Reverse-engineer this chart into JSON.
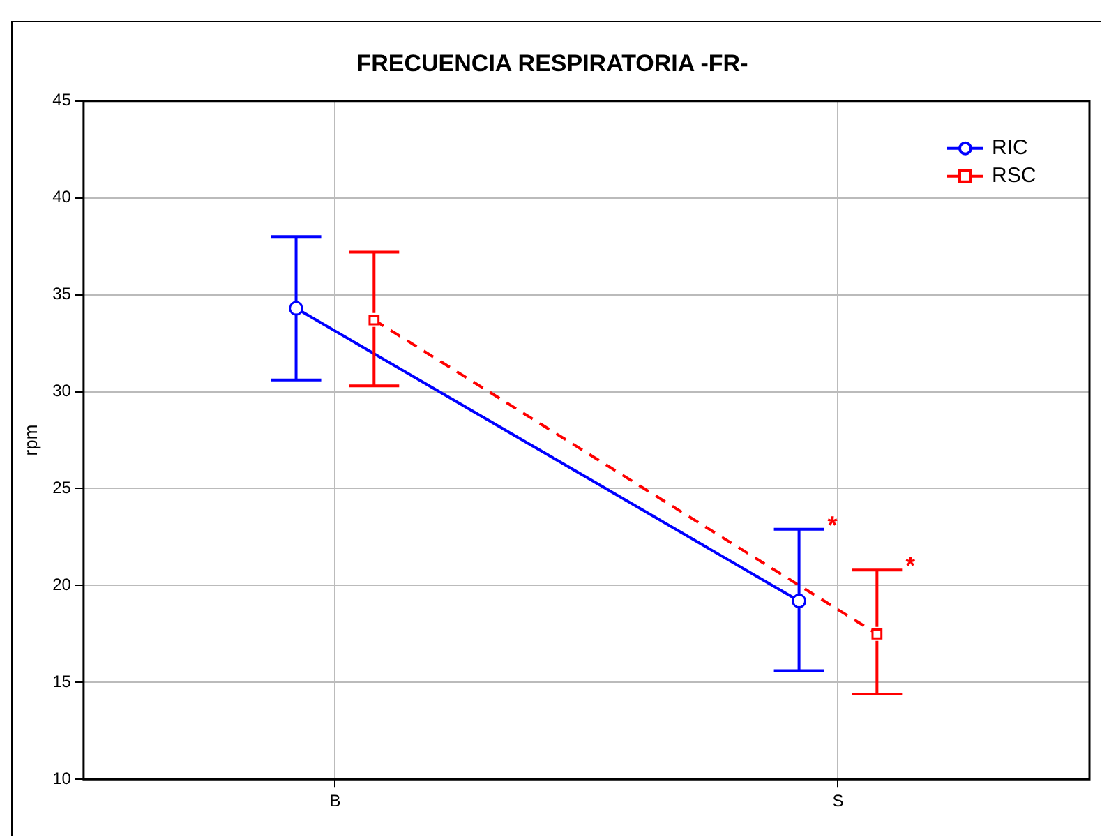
{
  "chart_data": {
    "type": "line",
    "title": "FRECUENCIA RESPIRATORIA -FR-",
    "ylabel": "rpm",
    "categories": [
      "B",
      "S"
    ],
    "series": [
      {
        "name": "RIC",
        "color": "#0000ff",
        "values": [
          34.3,
          19.2
        ],
        "errors": [
          [
            30.6,
            38.0
          ],
          [
            15.6,
            22.9
          ]
        ],
        "marker": "circle",
        "line_style": "solid"
      },
      {
        "name": "RSC",
        "color": "#ff0000",
        "values": [
          33.7,
          17.5
        ],
        "errors": [
          [
            30.3,
            37.2
          ],
          [
            14.4,
            20.8
          ]
        ],
        "marker": "square",
        "line_style": "dashed"
      }
    ],
    "annotations": [
      "*",
      "*"
    ],
    "ylim": [
      10,
      45
    ],
    "yticks": [
      10,
      15,
      20,
      25,
      30,
      35,
      40,
      45
    ],
    "grid": true,
    "legend": "top right"
  }
}
